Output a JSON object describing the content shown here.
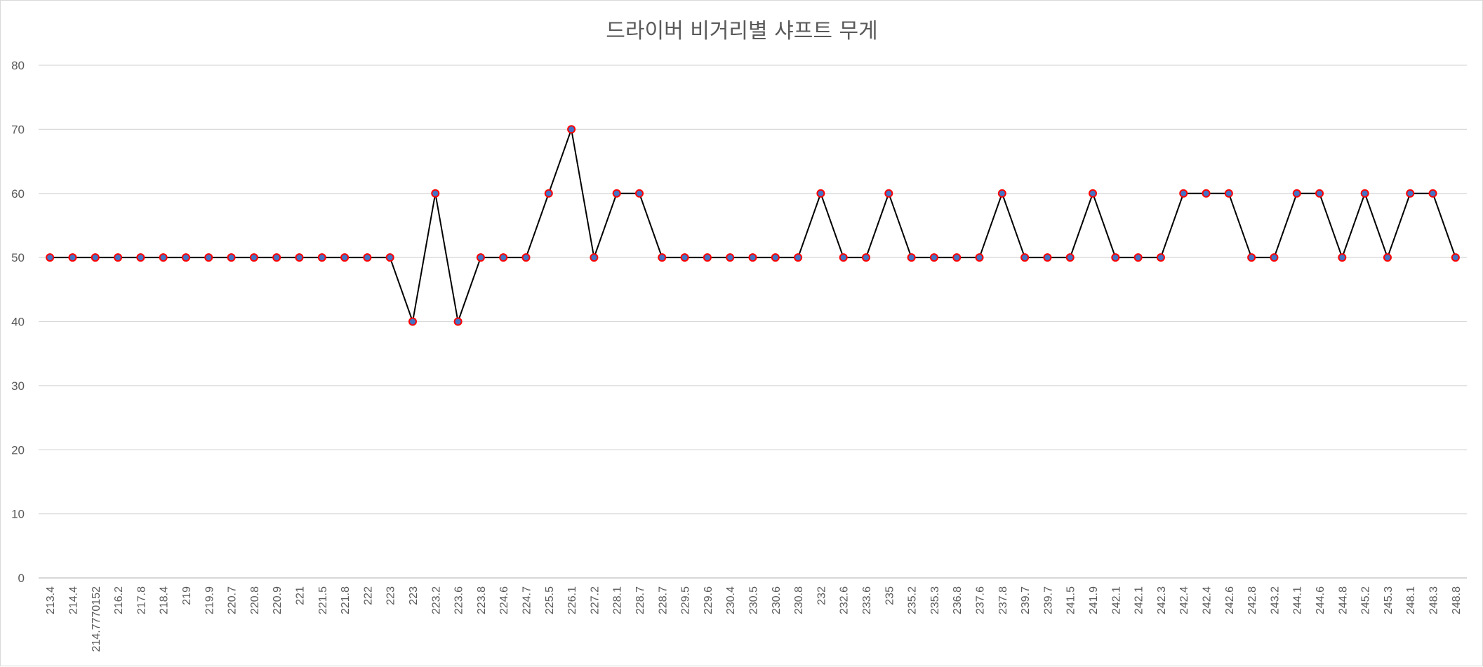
{
  "chart_data": {
    "type": "line",
    "title": "드라이버 비거리별 샤프트 무게",
    "xlabel": "",
    "ylabel": "",
    "ylim": [
      0,
      80
    ],
    "yticks": [
      0,
      10,
      20,
      30,
      40,
      50,
      60,
      70,
      80
    ],
    "grid": true,
    "legend": "none",
    "colors": {
      "line": "#000000",
      "marker_fill": "#4472C4",
      "marker_edge": "#FF0000"
    },
    "categories": [
      "213.4",
      "214.4",
      "214.7770152",
      "216.2",
      "217.8",
      "218.4",
      "219",
      "219.9",
      "220.7",
      "220.8",
      "220.9",
      "221",
      "221.5",
      "221.8",
      "222",
      "223",
      "223",
      "223.2",
      "223.6",
      "223.8",
      "224.6",
      "224.7",
      "225.5",
      "226.1",
      "227.2",
      "228.1",
      "228.7",
      "228.7",
      "229.5",
      "229.6",
      "230.4",
      "230.5",
      "230.6",
      "230.8",
      "232",
      "232.6",
      "233.6",
      "235",
      "235.2",
      "235.3",
      "236.8",
      "237.6",
      "237.8",
      "239.7",
      "239.7",
      "241.5",
      "241.9",
      "242.1",
      "242.1",
      "242.3",
      "242.4",
      "242.4",
      "242.6",
      "242.8",
      "243.2",
      "244.1",
      "244.6",
      "244.8",
      "245.2",
      "245.3",
      "248.1",
      "248.3",
      "248.8"
    ],
    "values": [
      50,
      50,
      50,
      50,
      50,
      50,
      50,
      50,
      50,
      50,
      50,
      50,
      50,
      50,
      50,
      50,
      40,
      60,
      40,
      50,
      50,
      50,
      60,
      70,
      50,
      60,
      60,
      50,
      50,
      50,
      50,
      50,
      50,
      50,
      60,
      50,
      50,
      60,
      50,
      50,
      50,
      50,
      60,
      50,
      50,
      50,
      60,
      50,
      50,
      50,
      60,
      60,
      60,
      50,
      50,
      60,
      60,
      50,
      60,
      50,
      60,
      60,
      50
    ]
  }
}
